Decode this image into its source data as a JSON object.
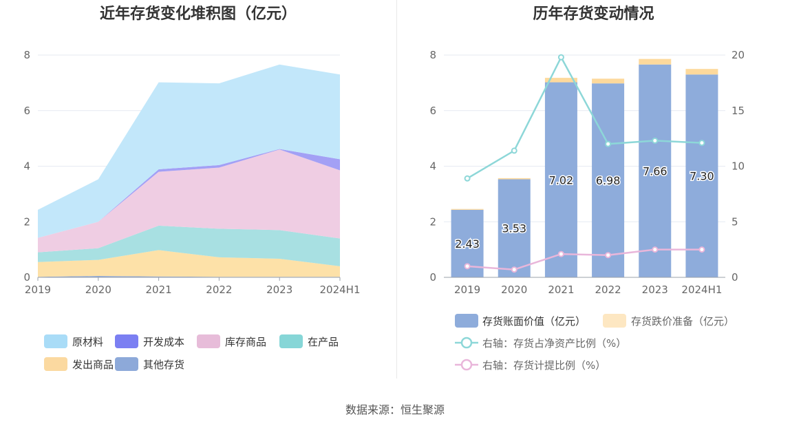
{
  "source_text": "数据来源：恒生聚源",
  "chart_data": [
    {
      "type": "area",
      "stacked": true,
      "title": "近年存货变化堆积图（亿元）",
      "categories": [
        "2019",
        "2020",
        "2021",
        "2022",
        "2023",
        "2024H1"
      ],
      "ylim": [
        0,
        8
      ],
      "yticks": [
        "0",
        "2",
        "4",
        "6",
        "8"
      ],
      "grid": true,
      "legend_position": "bottom",
      "series": [
        {
          "name": "其他存货",
          "color": "#8da9d9",
          "values": [
            0.02,
            0.05,
            0.03,
            0.02,
            0.02,
            0.02
          ]
        },
        {
          "name": "发出商品",
          "color": "#fde1a8",
          "values": [
            0.53,
            0.58,
            0.95,
            0.7,
            0.65,
            0.38
          ]
        },
        {
          "name": "在产品",
          "color": "#a8e0e2",
          "values": [
            0.35,
            0.42,
            0.88,
            1.03,
            1.03,
            1.0
          ]
        },
        {
          "name": "库存商品",
          "color": "#efcde3",
          "values": [
            0.52,
            0.95,
            1.94,
            2.2,
            2.9,
            2.45
          ]
        },
        {
          "name": "开发成本",
          "color": "#a3a0f5",
          "values": [
            0.0,
            0.0,
            0.09,
            0.09,
            0.02,
            0.4
          ]
        },
        {
          "name": "原材料",
          "color": "#c2e7fa",
          "values": [
            1.01,
            1.53,
            3.13,
            2.94,
            3.04,
            3.05
          ]
        }
      ],
      "legend": [
        {
          "name": "原材料",
          "color": "#a9dcf7"
        },
        {
          "name": "开发成本",
          "color": "#7b7ff2"
        },
        {
          "name": "库存商品",
          "color": "#e7bcd9"
        },
        {
          "name": "在产品",
          "color": "#86d6d7"
        },
        {
          "name": "发出商品",
          "color": "#fbd9a0"
        },
        {
          "name": "其他存货",
          "color": "#8da9d9"
        }
      ]
    },
    {
      "type": "bar",
      "stacked": true,
      "title": "历年存货变动情况",
      "categories": [
        "2019",
        "2020",
        "2021",
        "2022",
        "2023",
        "2024H1"
      ],
      "ylim": [
        0,
        8
      ],
      "yticks": [
        "0",
        "2",
        "4",
        "6",
        "8"
      ],
      "y2lim": [
        0,
        20
      ],
      "y2ticks": [
        "0",
        "5",
        "10",
        "15",
        "20"
      ],
      "grid": true,
      "legend_position": "bottom",
      "series": [
        {
          "name": "存货账面价值（亿元）",
          "color": "#8eacdb",
          "values": [
            2.43,
            3.53,
            7.02,
            6.98,
            7.66,
            7.3
          ],
          "labels": [
            "2.43",
            "3.53",
            "7.02",
            "6.98",
            "7.66",
            "7.30"
          ]
        },
        {
          "name": "存货跌价准备（亿元）",
          "color": "#fdd99c",
          "values": [
            0.03,
            0.04,
            0.16,
            0.17,
            0.2,
            0.2
          ]
        }
      ],
      "line_series": [
        {
          "name": "右轴：存货占净资产比例（%）",
          "color": "#8dd7d8",
          "axis": "right",
          "values": [
            8.9,
            11.4,
            19.8,
            12.0,
            12.3,
            12.1
          ]
        },
        {
          "name": "右轴：存货计提比例（%）",
          "color": "#e9b6da",
          "axis": "right",
          "values": [
            1.0,
            0.7,
            2.1,
            2.0,
            2.5,
            2.5
          ]
        }
      ]
    }
  ]
}
